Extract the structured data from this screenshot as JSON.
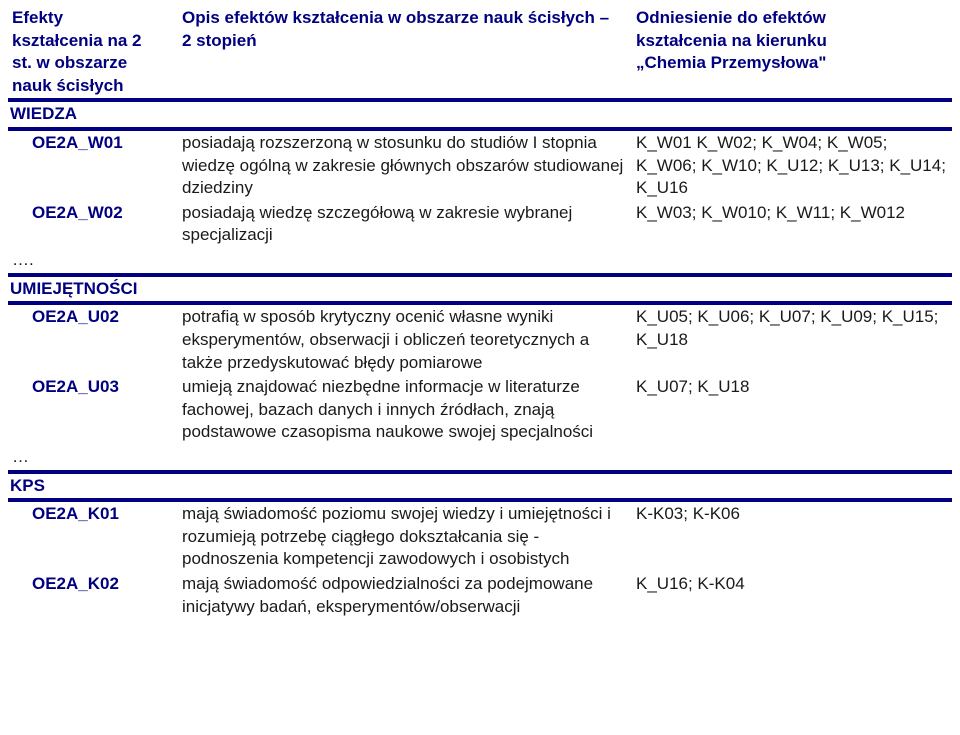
{
  "header": {
    "col1_l1": "Efekty",
    "col1_l2": "kształcenia na 2",
    "col1_l3": "st. w obszarze",
    "col1_l4": "nauk ścisłych",
    "col2_l1": "Opis efektów kształcenia w obszarze nauk ścisłych –",
    "col2_l2": "2 stopień",
    "col3_l1": "Odniesienie do efektów",
    "col3_l2": "kształcenia na kierunku",
    "col3_l3": "„Chemia Przemysłowa\""
  },
  "sections": {
    "wiedza": "WIEDZA",
    "umiej": "UMIEJĘTNOŚCI",
    "kps": "KPS"
  },
  "rows": {
    "w01": {
      "code": "OE2A_W01",
      "desc": "posiadają rozszerzoną w stosunku do studiów I stopnia wiedzę ogólną w zakresie głównych obszarów studiowanej dziedziny",
      "ref": "K_W01  K_W02; K_W04; K_W05; K_W06;  K_W10; K_U12;  K_U13; K_U14;  K_U16"
    },
    "w02": {
      "code": "OE2A_W02",
      "desc": "posiadają wiedzę szczegółową w zakresie wybranej specjalizacji",
      "ref": "K_W03;   K_W010; K_W11; K_W012"
    },
    "u02": {
      "code": "OE2A_U02",
      "desc": "potrafią w sposób krytyczny ocenić własne wyniki eksperymentów, obserwacji i obliczeń teoretycznych a także przedyskutować błędy pomiarowe",
      "ref": "K_U05;  K_U06; K_U07; K_U09;  K_U15;  K_U18"
    },
    "u03": {
      "code": "OE2A_U03",
      "desc": "umieją znajdować niezbędne informacje w literaturze fachowej, bazach danych i innych źródłach, znają podstawowe czasopisma naukowe swojej specjalności",
      "ref": "K_U07;  K_U18"
    },
    "k01": {
      "code": "OE2A_K01",
      "desc": "mają świadomość poziomu swojej wiedzy i umiejętności i rozumieją potrzebę ciągłego dokształcania się - podnoszenia kompetencji zawodowych i osobistych",
      "ref": "K-K03;  K-K06"
    },
    "k02": {
      "code": "OE2A_K02",
      "desc": "mają świadomość odpowiedzialności za podejmowane inicjatywy badań, eksperymentów/obserwacji",
      "ref": "K_U16;  K-K04"
    }
  },
  "dots": {
    "d1": "….",
    "d2": "…"
  }
}
